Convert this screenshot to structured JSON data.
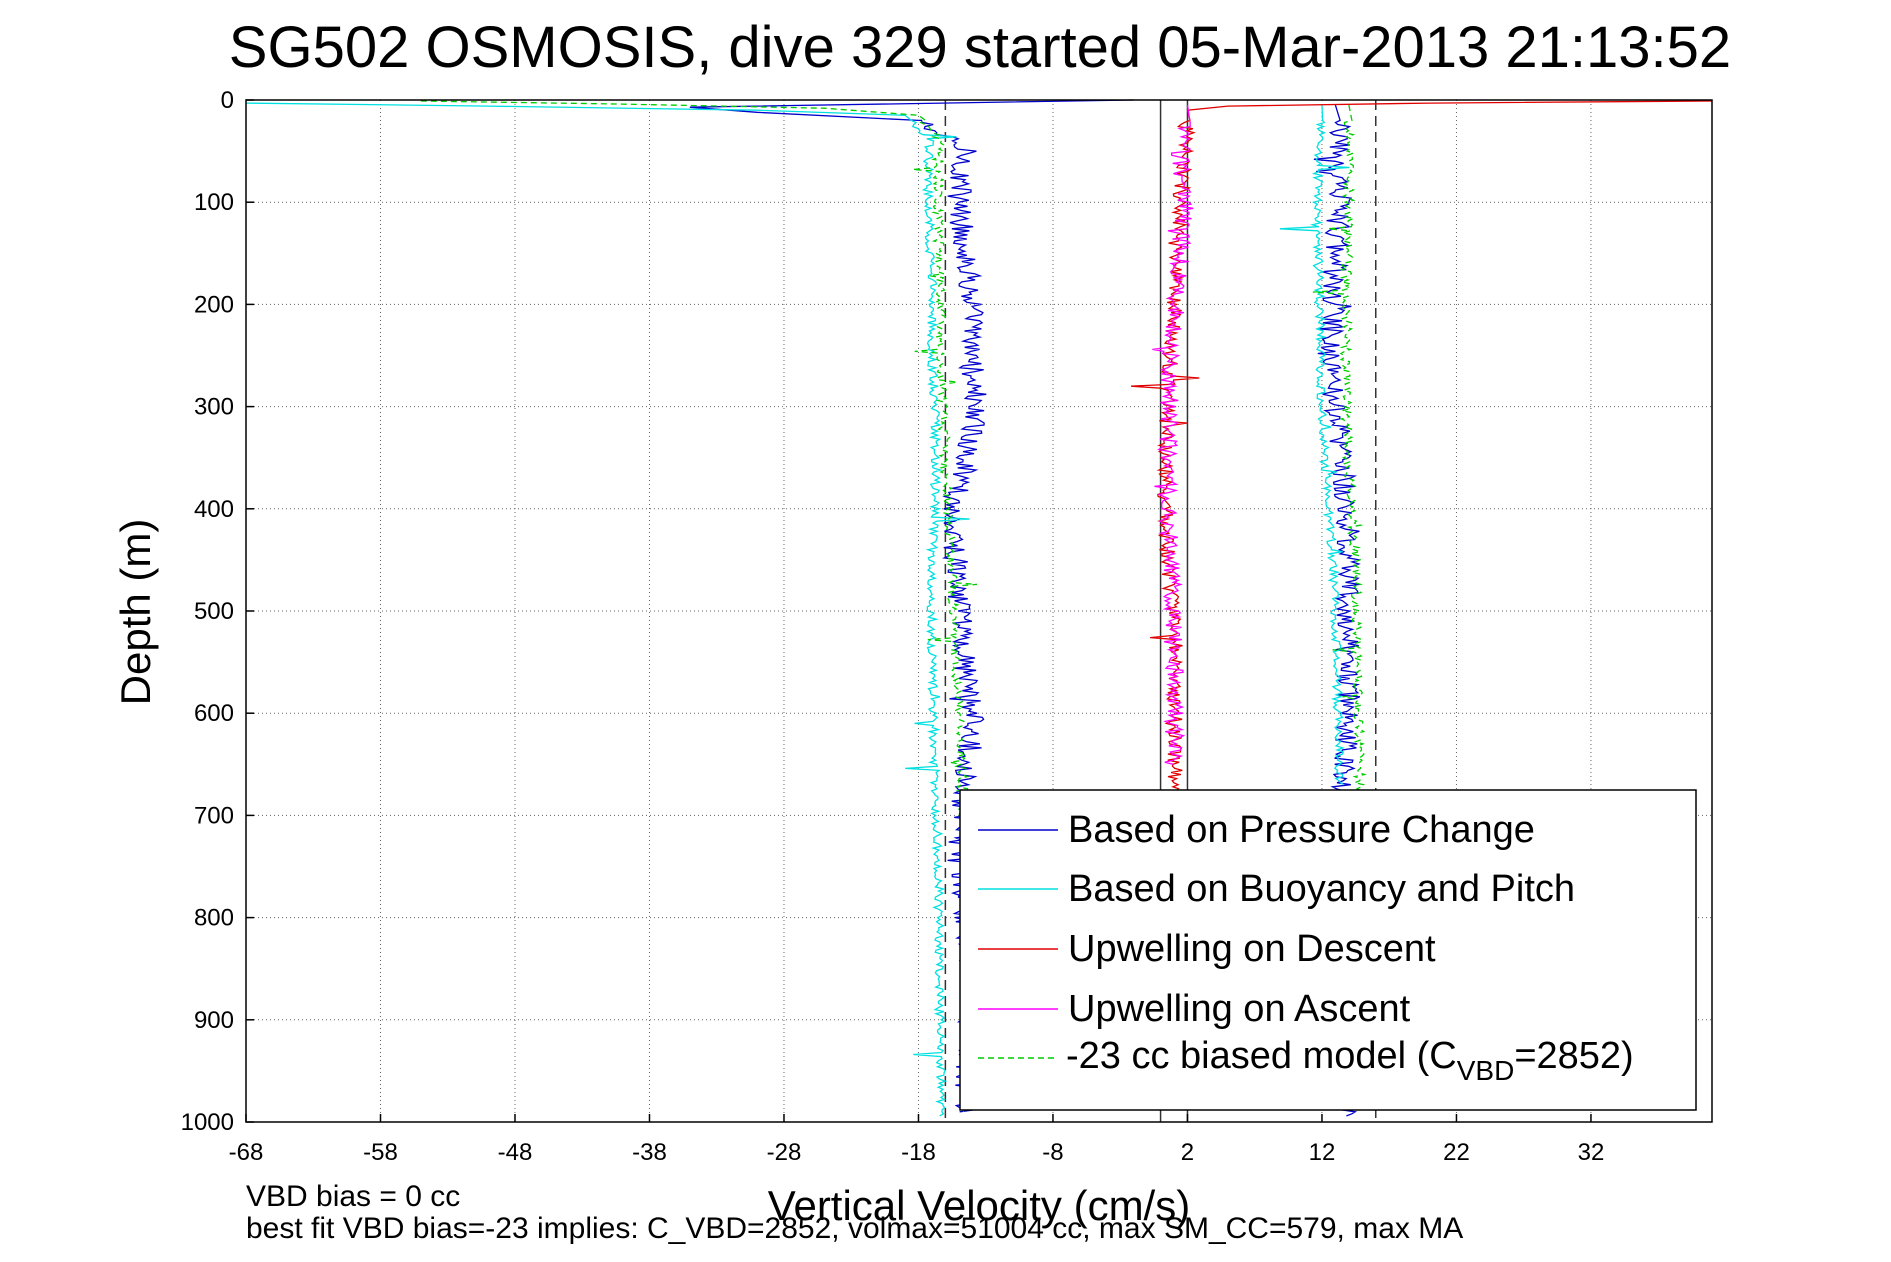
{
  "chart_data": {
    "type": "line",
    "title": "SG502 OSMOSIS, dive 329 started 05-Mar-2013 21:13:52",
    "xlabel": "Vertical Velocity (cm/s)",
    "ylabel": "Depth (m)",
    "xlim": [
      -68,
      41
    ],
    "ylim": [
      0,
      1000
    ],
    "y_reversed": true,
    "xticks": [
      -68,
      -58,
      -48,
      -38,
      -28,
      -18,
      -8,
      2,
      12,
      22,
      32
    ],
    "yticks": [
      0,
      100,
      200,
      300,
      400,
      500,
      600,
      700,
      800,
      900,
      1000
    ],
    "grid": true,
    "legend_position": "bottom-right",
    "reference_lines": {
      "dashed_x": [
        -16,
        16
      ],
      "solid_x": [
        0,
        2
      ]
    },
    "series": [
      {
        "name": "Based on Pressure Change",
        "color": "#0000cc",
        "style": "solid",
        "profiles": [
          {
            "x": [
              -2,
              -35,
              -30,
              -18,
              -14.5,
              -15,
              -14.5,
              -14,
              -14.2,
              -13.8,
              -14,
              -14.5,
              -15.5,
              -15.2,
              -15,
              -14.5,
              -14,
              -14.3,
              -14.8,
              -15,
              -14.5,
              -14,
              -14.2,
              -14.5
            ],
            "y": [
              0,
              7,
              12,
              20,
              50,
              100,
              150,
              200,
              250,
              280,
              320,
              360,
              400,
              450,
              500,
              550,
              600,
              650,
              700,
              750,
              800,
              850,
              900,
              990
            ]
          },
          {
            "x": [
              13,
              13.2,
              13.5,
              13,
              12.8,
              12.5,
              13,
              13.5,
              14,
              14,
              13.8,
              14,
              13.8,
              13.6,
              13.5
            ],
            "y": [
              5,
              30,
              80,
              150,
              200,
              260,
              300,
              350,
              420,
              480,
              550,
              600,
              640,
              670,
              995
            ]
          }
        ]
      },
      {
        "name": "Based on Buoyancy and Pitch",
        "color": "#00e0e0",
        "style": "solid",
        "profiles": [
          {
            "x": [
              -68,
              -50,
              -30,
              -19,
              -17.2,
              -17.3,
              -17.2,
              -17,
              -17,
              -16.8,
              -16.7,
              -16.8,
              -17,
              -17,
              -17,
              -16.9,
              -16.8,
              -16.7,
              -16.5,
              -16.5,
              -16.4,
              -16.3
            ],
            "y": [
              3,
              6,
              10,
              15,
              40,
              80,
              120,
              180,
              250,
              300,
              350,
              400,
              450,
              500,
              550,
              600,
              650,
              700,
              750,
              800,
              900,
              995
            ]
          },
          {
            "x": [
              12,
              11.8,
              11.6,
              11.8,
              12,
              12.2,
              12.5,
              12.8,
              13,
              13.1,
              13.2,
              13.3
            ],
            "y": [
              5,
              50,
              100,
              200,
              300,
              350,
              400,
              450,
              500,
              550,
              600,
              670
            ]
          }
        ]
      },
      {
        "name": "Upwelling on Descent",
        "color": "#e00000",
        "style": "solid",
        "profiles": [
          {
            "x": [
              41,
              20,
              5,
              2,
              1.8,
              1.5,
              1,
              1,
              0.5,
              0.5,
              0.3,
              0.5,
              1,
              1.2,
              1,
              1,
              1.2
            ],
            "y": [
              1,
              3,
              6,
              10,
              50,
              100,
              150,
              200,
              300,
              350,
              400,
              450,
              500,
              550,
              600,
              650,
              680
            ]
          }
        ]
      },
      {
        "name": "Upwelling on Ascent",
        "color": "#ff00ff",
        "style": "solid",
        "profiles": [
          {
            "x": [
              2,
              1.5,
              1.8,
              1.5,
              1.2,
              0.8,
              0.6,
              0.5,
              0.6,
              0.8,
              1,
              1
            ],
            "y": [
              5,
              50,
              100,
              150,
              200,
              250,
              300,
              350,
              400,
              450,
              550,
              650
            ]
          }
        ]
      },
      {
        "name": "-23 cc biased model (C_VBD=2852)",
        "color": "#00cc00",
        "style": "dashed",
        "profiles": [
          {
            "x": [
              -55,
              -40,
              -25,
              -18,
              -16.5,
              -16.5,
              -16.4,
              -16.3,
              -16.2,
              -16,
              -15.8,
              -15.6,
              -15.4,
              -15.2,
              -15,
              -14.8,
              -14.6,
              -14.5,
              -14.4
            ],
            "y": [
              1,
              4,
              8,
              15,
              40,
              100,
              200,
              250,
              300,
              350,
              400,
              450,
              500,
              550,
              600,
              650,
              700,
              800,
              990
            ]
          },
          {
            "x": [
              14,
              14,
              13.8,
              13.8,
              14,
              14.2,
              14.5,
              14.6,
              14.7,
              14.8
            ],
            "y": [
              5,
              100,
              200,
              300,
              350,
              400,
              450,
              500,
              600,
              680
            ]
          }
        ]
      }
    ]
  },
  "chart_text": {
    "legend_labels": [
      "Based on Pressure Change",
      "Based on Buoyancy and Pitch",
      "Upwelling on Descent",
      "Upwelling on Ascent",
      "-23 cc biased model (C"
    ],
    "legend_subscript": "VBD",
    "legend_suffix": "=2852)"
  },
  "notes": {
    "line1": "VBD bias = 0 cc",
    "line2": "best fit VBD bias=-23 implies: C_VBD=2852, volmax=51004 cc, max SM_CC=579, max MA"
  }
}
